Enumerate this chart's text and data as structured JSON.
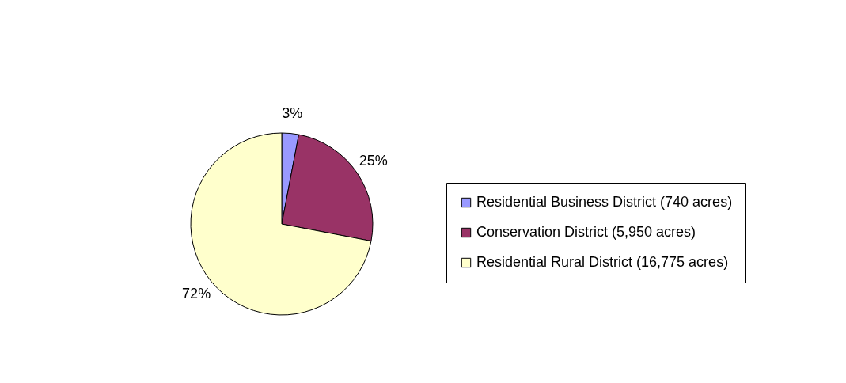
{
  "chart_data": {
    "type": "pie",
    "categories": [
      "Residential Business District (740 acres)",
      "Conservation District (5,950 acres)",
      "Residential Rural District (16,775 acres)"
    ],
    "values": [
      3,
      25,
      72
    ],
    "colors": [
      "#9999ff",
      "#993366",
      "#ffffcc"
    ],
    "value_labels": [
      "3%",
      "25%",
      "72%"
    ],
    "legend": "right"
  }
}
